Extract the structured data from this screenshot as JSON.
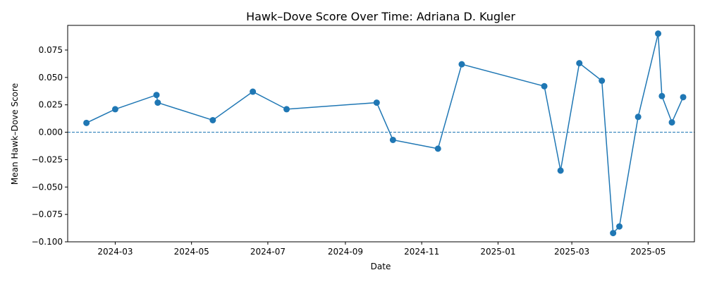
{
  "chart_data": {
    "type": "line",
    "title": "Hawk–Dove Score Over Time: Adriana D. Kugler",
    "xlabel": "Date",
    "ylabel": "Mean Hawk–Dove Score",
    "x_axis": "date",
    "xlim": [
      "2024-01-23",
      "2025-06-07"
    ],
    "ylim": [
      -0.1,
      0.0975
    ],
    "x_ticks": [
      "2024-03",
      "2024-05",
      "2024-07",
      "2024-09",
      "2024-11",
      "2025-01",
      "2025-03",
      "2025-05"
    ],
    "y_ticks": [
      "0.075",
      "0.050",
      "0.025",
      "0.000",
      "−0.025",
      "−0.050",
      "−0.075",
      "−0.100"
    ],
    "y_tick_values": [
      0.075,
      0.05,
      0.025,
      0,
      -0.025,
      -0.05,
      -0.075,
      -0.1
    ],
    "reference_line": 0,
    "grid": false,
    "colors": {
      "line": "#1f77b4",
      "reference": "#1f77b4"
    },
    "series": [
      {
        "x": [
          "2024-02-07",
          "2024-03-01",
          "2024-04-03",
          "2024-04-04",
          "2024-05-18",
          "2024-06-19",
          "2024-07-16",
          "2024-09-26",
          "2024-10-09",
          "2024-11-14",
          "2024-12-03",
          "2025-02-07",
          "2025-02-20",
          "2025-03-07",
          "2025-03-25",
          "2025-04-03",
          "2025-04-08",
          "2025-04-23",
          "2025-05-09",
          "2025-05-12",
          "2025-05-20",
          "2025-05-29"
        ],
        "y": [
          0.0085,
          0.021,
          0.034,
          0.027,
          0.011,
          0.037,
          0.021,
          0.027,
          -0.007,
          -0.015,
          0.062,
          0.042,
          -0.035,
          0.063,
          0.047,
          -0.092,
          -0.086,
          0.014,
          0.09,
          0.033,
          0.009,
          0.032
        ]
      }
    ]
  }
}
